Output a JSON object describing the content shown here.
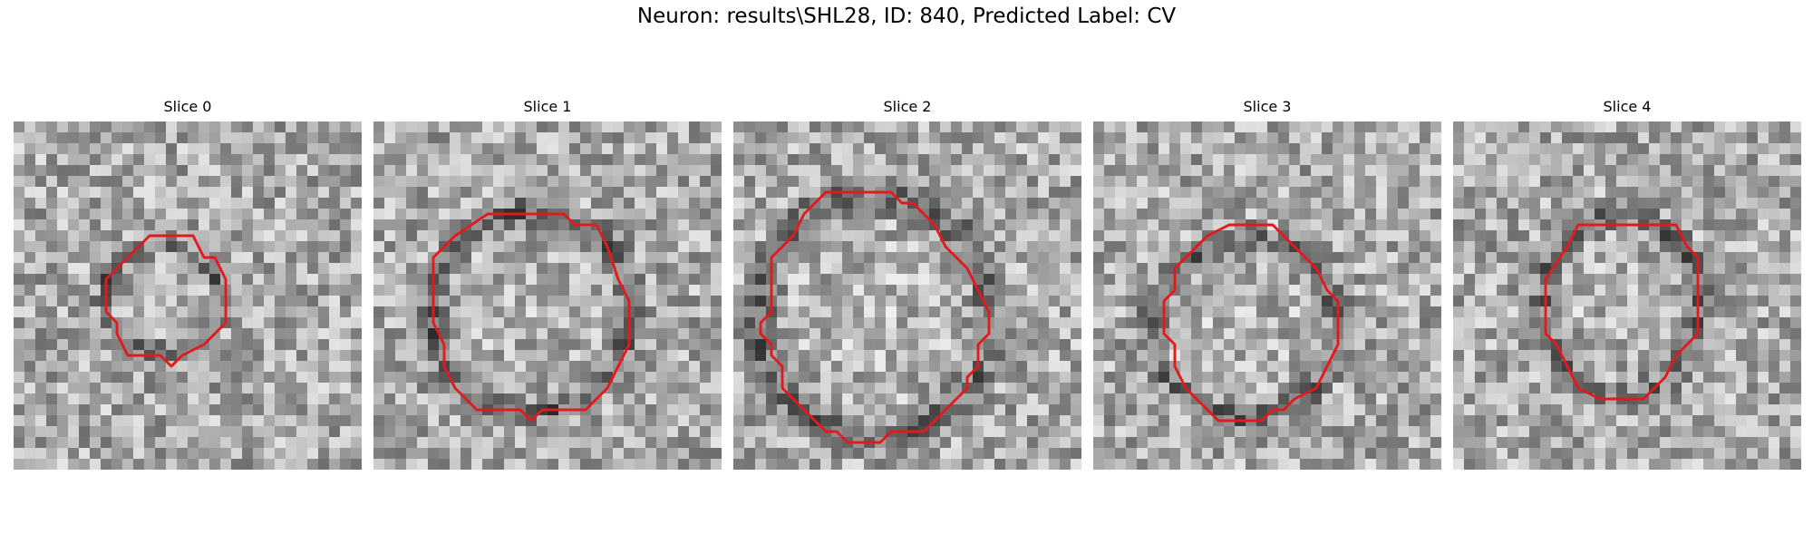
{
  "figure": {
    "title": "Neuron: results\\SHL28, ID: 840, Predicted Label: CV",
    "contour_color": "#e31a1c",
    "colormap": "gray"
  },
  "slices": [
    {
      "title": "Slice 0",
      "contour": [
        [
          12.5,
          10.5
        ],
        [
          16.5,
          10.5
        ],
        [
          17.5,
          12.5
        ],
        [
          18.5,
          12.5
        ],
        [
          19.5,
          14.5
        ],
        [
          19.5,
          18.5
        ],
        [
          17.5,
          20.5
        ],
        [
          15.5,
          21.5
        ],
        [
          14.5,
          22.5
        ],
        [
          13.5,
          21.5
        ],
        [
          10.5,
          21.5
        ],
        [
          9.5,
          19.5
        ],
        [
          9.5,
          18.5
        ],
        [
          8.5,
          17.5
        ],
        [
          8.5,
          14.5
        ]
      ],
      "dark_ring": {
        "cx": 13.6,
        "cy": 16.4,
        "rx": 5.6,
        "ry": 4.9
      },
      "seed": 17
    },
    {
      "title": "Slice 1",
      "contour": [
        [
          10.5,
          8.5
        ],
        [
          17.5,
          8.5
        ],
        [
          18.5,
          9.5
        ],
        [
          20.5,
          9.5
        ],
        [
          21.5,
          11.5
        ],
        [
          22.5,
          14.5
        ],
        [
          23.5,
          16.5
        ],
        [
          23.5,
          20.5
        ],
        [
          22.5,
          22.5
        ],
        [
          21.5,
          24.5
        ],
        [
          19.5,
          26.5
        ],
        [
          15.5,
          26.5
        ],
        [
          14.5,
          27.5
        ],
        [
          13.5,
          26.5
        ],
        [
          9.5,
          26.5
        ],
        [
          7.5,
          24.5
        ],
        [
          6.5,
          22.5
        ],
        [
          6.5,
          20.5
        ],
        [
          5.5,
          18.5
        ],
        [
          5.5,
          12.5
        ],
        [
          7.5,
          10.5
        ]
      ],
      "dark_ring": {
        "cx": 14.5,
        "cy": 17.5,
        "rx": 9.5,
        "ry": 9.5
      },
      "seed": 29
    },
    {
      "title": "Slice 2",
      "contour": [
        [
          8.5,
          6.5
        ],
        [
          14.5,
          6.5
        ],
        [
          15.5,
          7.5
        ],
        [
          16.5,
          7.5
        ],
        [
          18.5,
          9.5
        ],
        [
          19.5,
          11.5
        ],
        [
          21.5,
          13.5
        ],
        [
          22.5,
          15.5
        ],
        [
          23.5,
          17.5
        ],
        [
          23.5,
          19.5
        ],
        [
          22.5,
          20.5
        ],
        [
          22.5,
          22.5
        ],
        [
          21.5,
          23.5
        ],
        [
          21.5,
          24.5
        ],
        [
          19.5,
          26.5
        ],
        [
          17.5,
          28.5
        ],
        [
          14.5,
          28.5
        ],
        [
          13.5,
          29.5
        ],
        [
          10.5,
          29.5
        ],
        [
          9.5,
          28.5
        ],
        [
          8.5,
          28.5
        ],
        [
          6.5,
          26.5
        ],
        [
          4.5,
          24.5
        ],
        [
          4.5,
          22.5
        ],
        [
          3.5,
          21.5
        ],
        [
          3.5,
          20.5
        ],
        [
          2.5,
          19.5
        ],
        [
          2.5,
          18.5
        ],
        [
          3.5,
          17.5
        ],
        [
          3.5,
          12.5
        ],
        [
          5.5,
          10.5
        ],
        [
          6.5,
          8.5
        ]
      ],
      "dark_ring": {
        "cx": 13.0,
        "cy": 18.0,
        "rx": 11.0,
        "ry": 11.5
      },
      "seed": 43
    },
    {
      "title": "Slice 3",
      "contour": [
        [
          12.5,
          9.5
        ],
        [
          16.5,
          9.5
        ],
        [
          18.5,
          11.5
        ],
        [
          20.5,
          13.5
        ],
        [
          21.5,
          15.5
        ],
        [
          22.5,
          16.5
        ],
        [
          22.5,
          20.5
        ],
        [
          21.5,
          22.5
        ],
        [
          20.5,
          24.5
        ],
        [
          18.5,
          25.5
        ],
        [
          17.5,
          26.5
        ],
        [
          16.5,
          26.5
        ],
        [
          15.5,
          27.5
        ],
        [
          12.5,
          27.5
        ],
        [
          11.5,
          27.5
        ],
        [
          8.5,
          24.5
        ],
        [
          7.5,
          22.5
        ],
        [
          7.5,
          20.5
        ],
        [
          6.5,
          19.5
        ],
        [
          6.5,
          16.5
        ],
        [
          7.5,
          15.5
        ],
        [
          7.5,
          13.5
        ],
        [
          10.5,
          10.5
        ]
      ],
      "dark_ring": {
        "cx": 14.0,
        "cy": 19.0,
        "rx": 8.8,
        "ry": 8.4
      },
      "seed": 61
    },
    {
      "title": "Slice 4",
      "contour": [
        [
          11.5,
          9.5
        ],
        [
          20.5,
          9.5
        ],
        [
          21.5,
          11.5
        ],
        [
          22.5,
          12.5
        ],
        [
          22.5,
          19.5
        ],
        [
          20.5,
          21.5
        ],
        [
          19.5,
          23.5
        ],
        [
          17.5,
          25.5
        ],
        [
          13.5,
          25.5
        ],
        [
          11.5,
          24.5
        ],
        [
          10.5,
          22.5
        ],
        [
          9.5,
          20.5
        ],
        [
          8.5,
          19.5
        ],
        [
          8.5,
          14.5
        ],
        [
          10.5,
          11.5
        ]
      ],
      "dark_ring": {
        "cx": 15.5,
        "cy": 17.0,
        "rx": 7.5,
        "ry": 8.5
      },
      "seed": 83
    }
  ]
}
